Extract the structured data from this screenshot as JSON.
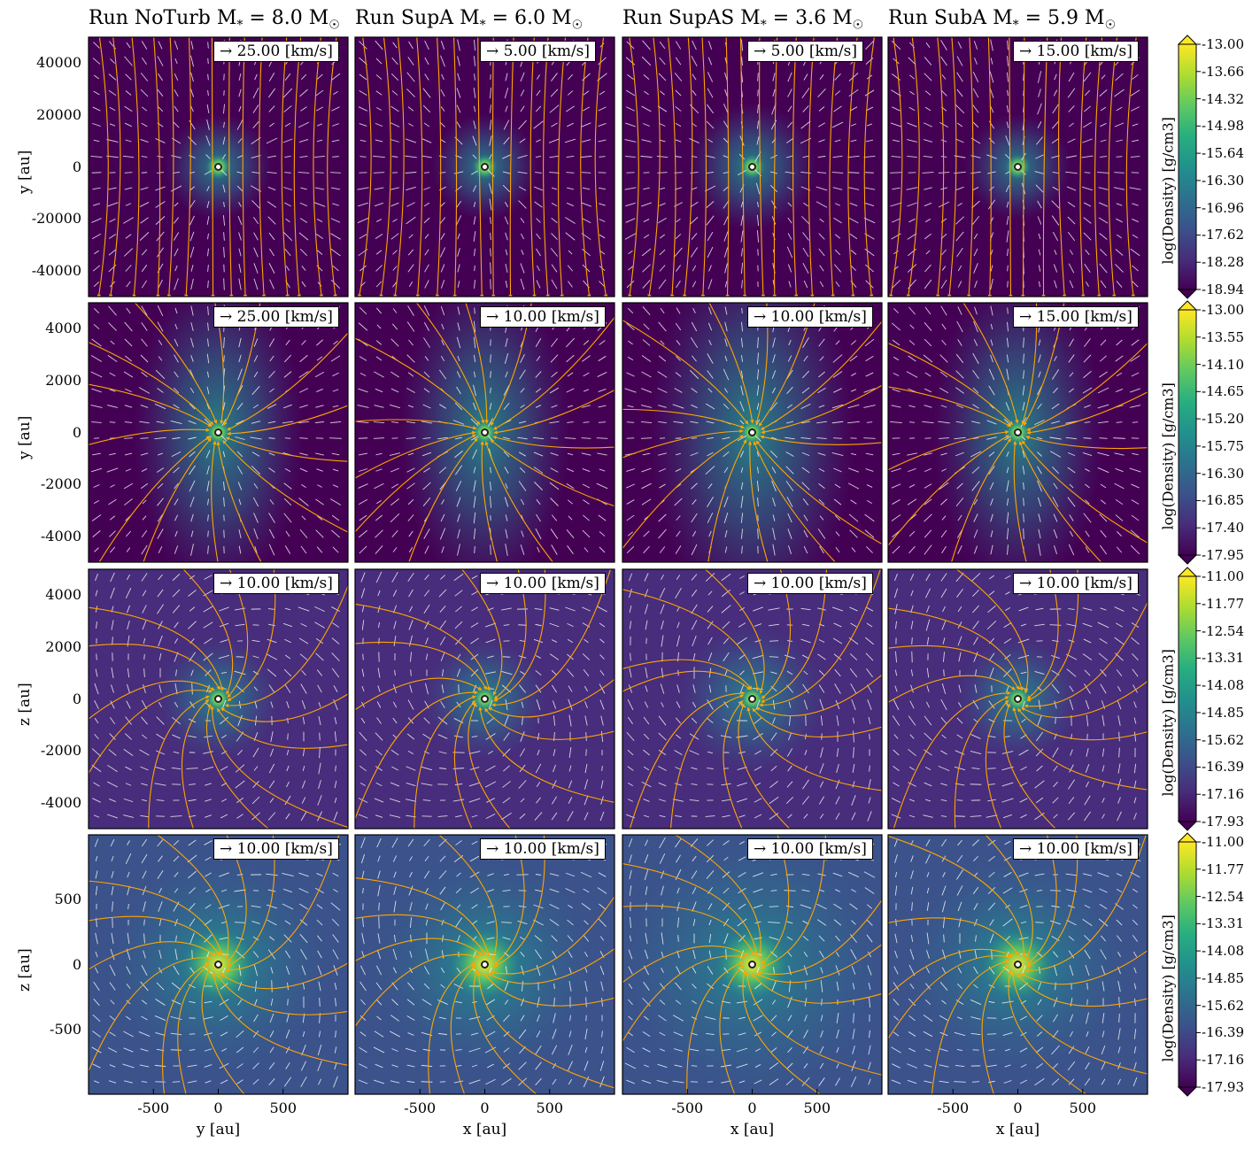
{
  "chart_data": {
    "type": "heatmap",
    "columns": [
      {
        "title": "Run NoTurb M<sub>*</sub> = 8.0 M<sub>☉</sub>",
        "run": "NoTurb",
        "mass": "8.0"
      },
      {
        "title": "Run SupA M<sub>*</sub> = 6.0 M<sub>☉</sub>",
        "run": "SupA",
        "mass": "6.0"
      },
      {
        "title": "Run SupAS M<sub>*</sub> = 3.6 M<sub>☉</sub>",
        "run": "SupAS",
        "mass": "3.6"
      },
      {
        "title": "Run SubA M<sub>*</sub> = 5.9 M<sub>☉</sub>",
        "run": "SubA",
        "mass": "5.9"
      }
    ],
    "rows": [
      {
        "ylabel": "y [au]",
        "yticks": [
          "40000",
          "20000",
          "0",
          "-20000",
          "-40000"
        ],
        "ylim": [
          -50000,
          50000
        ],
        "colorbar_label": "log(Density) [g/cm3]",
        "colorbar_ticks": [
          "-13.00",
          "-13.66",
          "-14.32",
          "-14.98",
          "-15.64",
          "-16.30",
          "-16.96",
          "-17.62",
          "-18.28",
          "-18.94"
        ],
        "scale_labels": [
          "→ 25.00 [km/s]",
          "→ 5.00 [km/s]",
          "→ 5.00 [km/s]",
          "→ 15.00 [km/s]"
        ]
      },
      {
        "ylabel": "y [au]",
        "yticks": [
          "4000",
          "2000",
          "0",
          "-2000",
          "-4000"
        ],
        "ylim": [
          -5000,
          5000
        ],
        "colorbar_label": "log(Density) [g/cm3]",
        "colorbar_ticks": [
          "-13.00",
          "-13.55",
          "-14.10",
          "-14.65",
          "-15.20",
          "-15.75",
          "-16.30",
          "-16.85",
          "-17.40",
          "-17.95"
        ],
        "scale_labels": [
          "→ 25.00 [km/s]",
          "→ 10.00 [km/s]",
          "→ 10.00 [km/s]",
          "→ 15.00 [km/s]"
        ]
      },
      {
        "ylabel": "z [au]",
        "yticks": [
          "4000",
          "2000",
          "0",
          "-2000",
          "-4000"
        ],
        "ylim": [
          -5000,
          5000
        ],
        "colorbar_label": "log(Density) [g/cm3]",
        "colorbar_ticks": [
          "-11.00",
          "-11.77",
          "-12.54",
          "-13.31",
          "-14.08",
          "-14.85",
          "-15.62",
          "-16.39",
          "-17.16",
          "-17.93"
        ],
        "scale_labels": [
          "→ 10.00 [km/s]",
          "→ 10.00 [km/s]",
          "→ 10.00 [km/s]",
          "→ 10.00 [km/s]"
        ]
      },
      {
        "ylabel": "z [au]",
        "yticks": [
          "500",
          "0",
          "-500"
        ],
        "ylim": [
          -1000,
          1000
        ],
        "colorbar_label": "log(Density) [g/cm3]",
        "colorbar_ticks": [
          "-11.00",
          "-11.77",
          "-12.54",
          "-13.31",
          "-14.08",
          "-14.85",
          "-15.62",
          "-16.39",
          "-17.16",
          "-17.93"
        ],
        "scale_labels": [
          "→ 10.00 [km/s]",
          "→ 10.00 [km/s]",
          "→ 10.00 [km/s]",
          "→ 10.00 [km/s]"
        ]
      }
    ],
    "xticks": [
      "-500",
      "0",
      "500"
    ],
    "xlim": [
      -1000,
      1000
    ],
    "xlabels": [
      "y [au]",
      "x [au]",
      "x [au]",
      "x [au]"
    ],
    "colormap": [
      "#440154",
      "#472d7b",
      "#3b528b",
      "#2c728e",
      "#21918c",
      "#28ae80",
      "#5ec962",
      "#addc30",
      "#fde725"
    ],
    "streamline_color": "#ffa500",
    "arrow_color": "#ffffff"
  }
}
